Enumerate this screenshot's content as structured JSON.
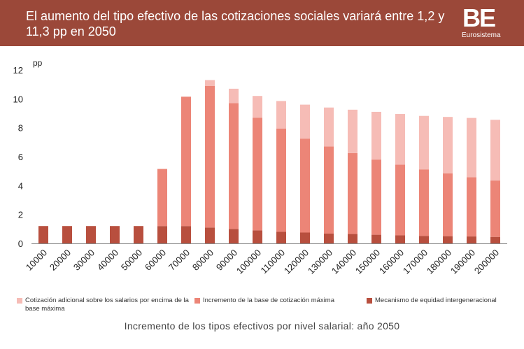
{
  "header": {
    "title": "El aumento del tipo efectivo de las cotizaciones sociales variará entre 1,2 y 11,3 pp en 2050",
    "logo_text": "BE",
    "logo_subtitle": "Eurosistema"
  },
  "colors": {
    "header_bg": "#9b4839",
    "equity": "#b84f3e",
    "base": "#ec8577",
    "additional": "#f6bcb6"
  },
  "chart_data": {
    "type": "bar",
    "stacked": true,
    "ylabel": "pp",
    "ylim": [
      0,
      12
    ],
    "yticks": [
      0,
      2,
      4,
      6,
      8,
      10,
      12
    ],
    "grid": false,
    "categories": [
      "10000",
      "20000",
      "30000",
      "40000",
      "50000",
      "60000",
      "70000",
      "80000",
      "90000",
      "100000",
      "110000",
      "120000",
      "130000",
      "140000",
      "150000",
      "160000",
      "170000",
      "180000",
      "190000",
      "200000"
    ],
    "series": [
      {
        "name": "Mecanismo de equidad intergeneracional",
        "color": "#b84f3e",
        "values": [
          1.2,
          1.2,
          1.2,
          1.2,
          1.2,
          1.2,
          1.2,
          1.1,
          1.0,
          0.9,
          0.8,
          0.75,
          0.68,
          0.65,
          0.6,
          0.56,
          0.52,
          0.5,
          0.48,
          0.45
        ]
      },
      {
        "name": "Incremento de la base de cotización máxima",
        "color": "#ec8577",
        "values": [
          0,
          0,
          0,
          0,
          0,
          3.95,
          8.95,
          9.8,
          8.7,
          7.8,
          7.15,
          6.5,
          6.02,
          5.6,
          5.2,
          4.89,
          4.6,
          4.35,
          4.1,
          3.9
        ]
      },
      {
        "name": "Cotización adicional sobre los salarios por encima de la base máxima",
        "color": "#f6bcb6",
        "values": [
          0,
          0,
          0,
          0,
          0,
          0,
          0,
          0.4,
          1.0,
          1.5,
          1.9,
          2.35,
          2.7,
          3.0,
          3.3,
          3.5,
          3.7,
          3.9,
          4.1,
          4.2
        ]
      }
    ]
  },
  "legend": {
    "additional": "Cotización adicional sobre los salarios por encima de la base máxima",
    "base": "Incremento de la base de cotización máxima",
    "equity": "Mecanismo de equidad intergeneracional"
  },
  "caption": "Incremento  de los tipos efectivos por nivel salarial: año 2050"
}
